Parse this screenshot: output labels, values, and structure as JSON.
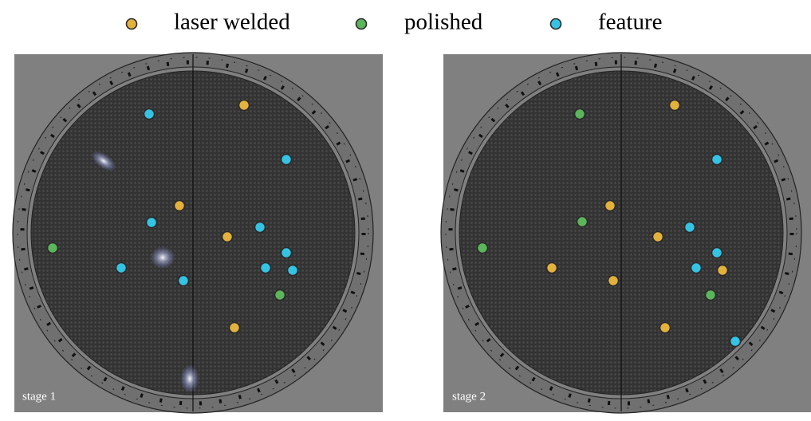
{
  "legend": [
    {
      "label": "laser welded",
      "color": "#e3b23c"
    },
    {
      "label": "polished",
      "color": "#5bb55a"
    },
    {
      "label": "feature",
      "color": "#35c3e3"
    }
  ],
  "panels": [
    {
      "label": "stage 1"
    },
    {
      "label": "stage 2"
    }
  ]
}
